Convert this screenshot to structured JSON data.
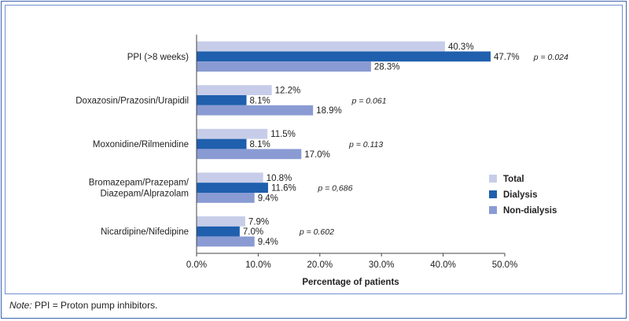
{
  "chart_data": {
    "type": "bar",
    "orientation": "horizontal",
    "categories": [
      [
        "PPI (>8 weeks)"
      ],
      [
        "Doxazosin/Prazosin/Urapidil"
      ],
      [
        "Moxonidine/Rilmenidine"
      ],
      [
        "Bromazepam/Prazepam/",
        "Diazepam/Alprazolam"
      ],
      [
        "Nicardipine/Nifedipine"
      ]
    ],
    "series": [
      {
        "name": "Total",
        "color": "#c7cde9",
        "values": [
          40.3,
          12.2,
          11.5,
          10.8,
          7.9
        ],
        "labels": [
          "40.3%",
          "12.2%",
          "11.5%",
          "10.8%",
          "7.9%"
        ]
      },
      {
        "name": "Dialysis",
        "color": "#1f5fad",
        "values": [
          47.7,
          8.1,
          8.1,
          11.6,
          7.0
        ],
        "labels": [
          "47.7%",
          "8.1%",
          "8.1%",
          "11.6%",
          "7.0%"
        ]
      },
      {
        "name": "Non-dialysis",
        "color": "#8a9bd3",
        "values": [
          28.3,
          18.9,
          17.0,
          9.4,
          9.4
        ],
        "labels": [
          "28.3%",
          "18.9%",
          "17.0%",
          "9.4%",
          "9.4%"
        ]
      }
    ],
    "p_values": [
      "p = 0.024",
      "p = 0.061",
      "p = 0.113",
      "p = 0,686",
      "p = 0.602"
    ],
    "p_value_x": [
      57.5,
      28,
      27.5,
      22.5,
      19.5
    ],
    "xlabel": "Percentage of patients",
    "xlim": [
      0,
      50
    ],
    "xticks": [
      0,
      10,
      20,
      30,
      40,
      50
    ],
    "xtick_labels": [
      "0.0%",
      "10.0%",
      "20.0%",
      "30.0%",
      "40.0%",
      "50.0%"
    ],
    "legend_position": "right",
    "grid": false
  },
  "note": {
    "label": "Note:",
    "text": " PPI = Proton pump inhibitors."
  },
  "frame_color": "#3f63b0"
}
